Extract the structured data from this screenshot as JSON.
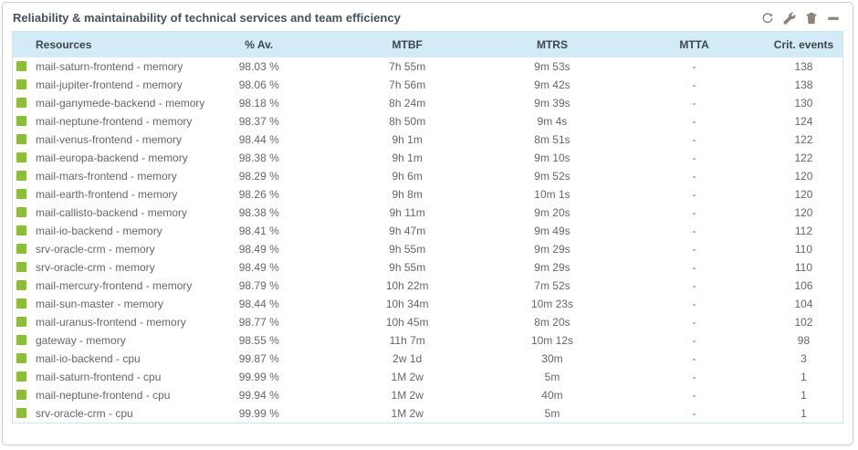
{
  "panel": {
    "title": "Reliability & maintainability of technical services and team efficiency",
    "toolbar": {
      "refresh": "refresh-icon",
      "configure": "wrench-icon",
      "delete": "trash-icon",
      "minimize": "minimize-icon"
    }
  },
  "colors": {
    "status_ok": "#8cbe3c",
    "header_bg": "#d2ebf7",
    "table_border": "#c9e4f2",
    "title_text": "#44525c",
    "icon": "#8b8376"
  },
  "table": {
    "columns": [
      {
        "key": "resource",
        "label": "Resources"
      },
      {
        "key": "availability",
        "label": "% Av."
      },
      {
        "key": "mtbf",
        "label": "MTBF"
      },
      {
        "key": "mtrs",
        "label": "MTRS"
      },
      {
        "key": "mtta",
        "label": "MTTA"
      },
      {
        "key": "crit",
        "label": "Crit. events"
      }
    ],
    "rows": [
      {
        "status": "ok",
        "resource": "mail-saturn-frontend - memory",
        "availability": "98.03 %",
        "mtbf": "7h 55m",
        "mtrs": "9m 53s",
        "mtta": "-",
        "crit": "138"
      },
      {
        "status": "ok",
        "resource": "mail-jupiter-frontend - memory",
        "availability": "98.06 %",
        "mtbf": "7h 56m",
        "mtrs": "9m 42s",
        "mtta": "-",
        "crit": "138"
      },
      {
        "status": "ok",
        "resource": "mail-ganymede-backend - memory",
        "availability": "98.18 %",
        "mtbf": "8h 24m",
        "mtrs": "9m 39s",
        "mtta": "-",
        "crit": "130"
      },
      {
        "status": "ok",
        "resource": "mail-neptune-frontend - memory",
        "availability": "98.37 %",
        "mtbf": "8h 50m",
        "mtrs": "9m 4s",
        "mtta": "-",
        "crit": "124"
      },
      {
        "status": "ok",
        "resource": "mail-venus-frontend - memory",
        "availability": "98.44 %",
        "mtbf": "9h 1m",
        "mtrs": "8m 51s",
        "mtta": "-",
        "crit": "122"
      },
      {
        "status": "ok",
        "resource": "mail-europa-backend - memory",
        "availability": "98.38 %",
        "mtbf": "9h 1m",
        "mtrs": "9m 10s",
        "mtta": "-",
        "crit": "122"
      },
      {
        "status": "ok",
        "resource": "mail-mars-frontend - memory",
        "availability": "98.29 %",
        "mtbf": "9h 6m",
        "mtrs": "9m 52s",
        "mtta": "-",
        "crit": "120"
      },
      {
        "status": "ok",
        "resource": "mail-earth-frontend - memory",
        "availability": "98.26 %",
        "mtbf": "9h 8m",
        "mtrs": "10m 1s",
        "mtta": "-",
        "crit": "120"
      },
      {
        "status": "ok",
        "resource": "mail-callisto-backend - memory",
        "availability": "98.38 %",
        "mtbf": "9h 11m",
        "mtrs": "9m 20s",
        "mtta": "-",
        "crit": "120"
      },
      {
        "status": "ok",
        "resource": "mail-io-backend - memory",
        "availability": "98.41 %",
        "mtbf": "9h 47m",
        "mtrs": "9m 49s",
        "mtta": "-",
        "crit": "112"
      },
      {
        "status": "ok",
        "resource": "srv-oracle-crm - memory",
        "availability": "98.49 %",
        "mtbf": "9h 55m",
        "mtrs": "9m 29s",
        "mtta": "-",
        "crit": "110"
      },
      {
        "status": "ok",
        "resource": "srv-oracle-crm - memory",
        "availability": "98.49 %",
        "mtbf": "9h 55m",
        "mtrs": "9m 29s",
        "mtta": "-",
        "crit": "110"
      },
      {
        "status": "ok",
        "resource": "mail-mercury-frontend - memory",
        "availability": "98.79 %",
        "mtbf": "10h 22m",
        "mtrs": "7m 52s",
        "mtta": "-",
        "crit": "106"
      },
      {
        "status": "ok",
        "resource": "mail-sun-master - memory",
        "availability": "98.44 %",
        "mtbf": "10h 34m",
        "mtrs": "10m 23s",
        "mtta": "-",
        "crit": "104"
      },
      {
        "status": "ok",
        "resource": "mail-uranus-frontend - memory",
        "availability": "98.77 %",
        "mtbf": "10h 45m",
        "mtrs": "8m 20s",
        "mtta": "-",
        "crit": "102"
      },
      {
        "status": "ok",
        "resource": "gateway - memory",
        "availability": "98.55 %",
        "mtbf": "11h 7m",
        "mtrs": "10m 12s",
        "mtta": "-",
        "crit": "98"
      },
      {
        "status": "ok",
        "resource": "mail-io-backend - cpu",
        "availability": "99.87 %",
        "mtbf": "2w 1d",
        "mtrs": "30m",
        "mtta": "-",
        "crit": "3"
      },
      {
        "status": "ok",
        "resource": "mail-saturn-frontend - cpu",
        "availability": "99.99 %",
        "mtbf": "1M 2w",
        "mtrs": "5m",
        "mtta": "-",
        "crit": "1"
      },
      {
        "status": "ok",
        "resource": "mail-neptune-frontend - cpu",
        "availability": "99.94 %",
        "mtbf": "1M 2w",
        "mtrs": "40m",
        "mtta": "-",
        "crit": "1"
      },
      {
        "status": "ok",
        "resource": "srv-oracle-crm - cpu",
        "availability": "99.99 %",
        "mtbf": "1M 2w",
        "mtrs": "5m",
        "mtta": "-",
        "crit": "1"
      }
    ]
  }
}
